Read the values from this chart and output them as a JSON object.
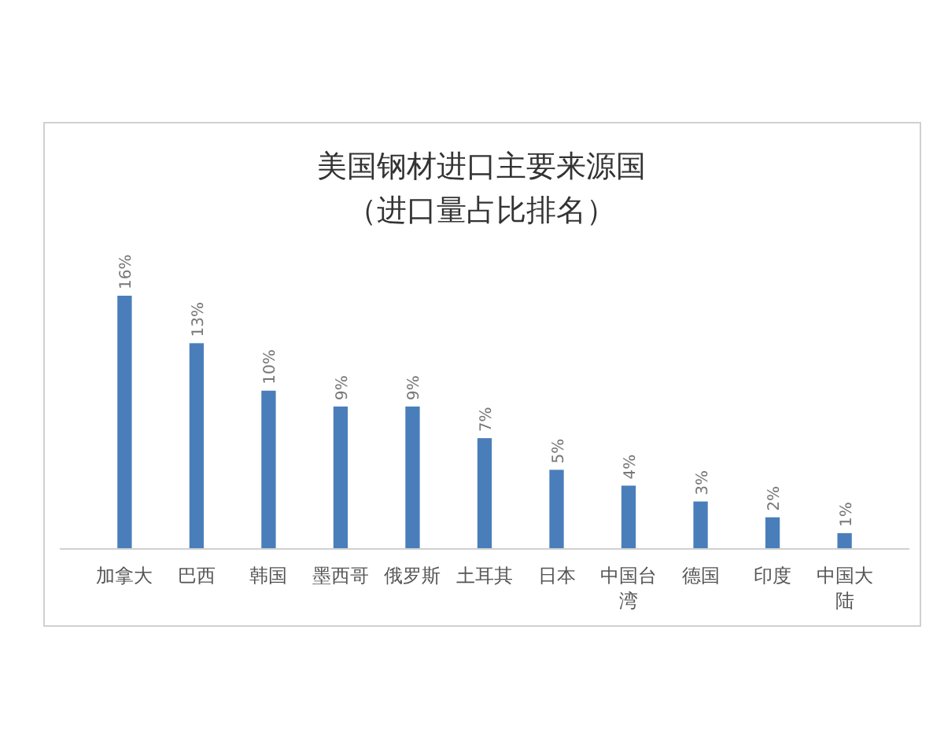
{
  "chart_data": {
    "type": "bar",
    "title": "美国钢材进口主要来源国",
    "subtitle": "（进口量占比排名）",
    "categories": [
      "加拿大",
      "巴西",
      "韩国",
      "墨西哥",
      "俄罗斯",
      "土耳其",
      "日本",
      "中国台湾",
      "德国",
      "印度",
      "中国大陆"
    ],
    "values": [
      16,
      13,
      10,
      9,
      9,
      7,
      5,
      4,
      3,
      2,
      1
    ],
    "value_labels": [
      "16%",
      "13%",
      "10%",
      "9%",
      "9%",
      "7%",
      "5%",
      "4%",
      "3%",
      "2%",
      "1%"
    ],
    "color": "#4a7ebb"
  }
}
